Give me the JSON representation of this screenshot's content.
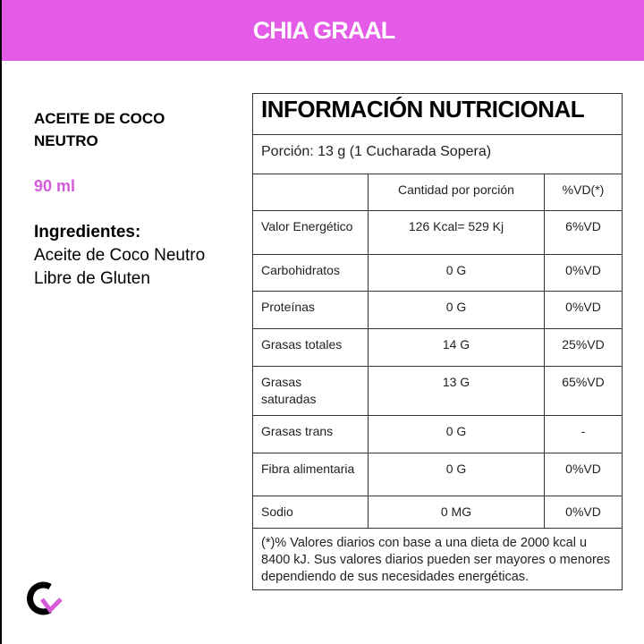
{
  "header": {
    "title": "CHIA GRAAL"
  },
  "product": {
    "name": "ACEITE DE COCO NEUTRO",
    "volume": "90 ml",
    "ingredients_title": "Ingredientes:",
    "ingredients": "Aceite de Coco Neutro Libre de Gluten"
  },
  "table": {
    "title": "INFORMACIÓN NUTRICIONAL",
    "portion": "Porción: 13 g (1 Cucharada Sopera)",
    "col_amount": "Cantidad  por porción",
    "col_vd": "%VD(*)",
    "rows": [
      {
        "name": "Valor Energético",
        "amount": "126 Kcal= 529 Kj",
        "vd": "6%VD"
      },
      {
        "name": "Carbohidratos",
        "amount": "0 G",
        "vd": "0%VD"
      },
      {
        "name": "Proteínas",
        "amount": "0 G",
        "vd": "0%VD"
      },
      {
        "name": "Grasas totales",
        "amount": "14 G",
        "vd": "25%VD"
      },
      {
        "name": "Grasas saturadas",
        "amount": "13 G",
        "vd": "65%VD"
      },
      {
        "name": "Grasas trans",
        "amount": "0 G",
        "vd": "-"
      },
      {
        "name": "Fibra alimentaria",
        "amount": "0 G",
        "vd": "0%VD"
      },
      {
        "name": "Sodio",
        "amount": "0 MG",
        "vd": "0%VD"
      }
    ],
    "note": "(*)% Valores diarios con base a una dieta de 2000 kcal u 8400 kJ. Sus valores diarios pueden ser mayores o menores dependiendo de sus necesidades energéticas."
  },
  "colors": {
    "brand": "#e35be6"
  }
}
